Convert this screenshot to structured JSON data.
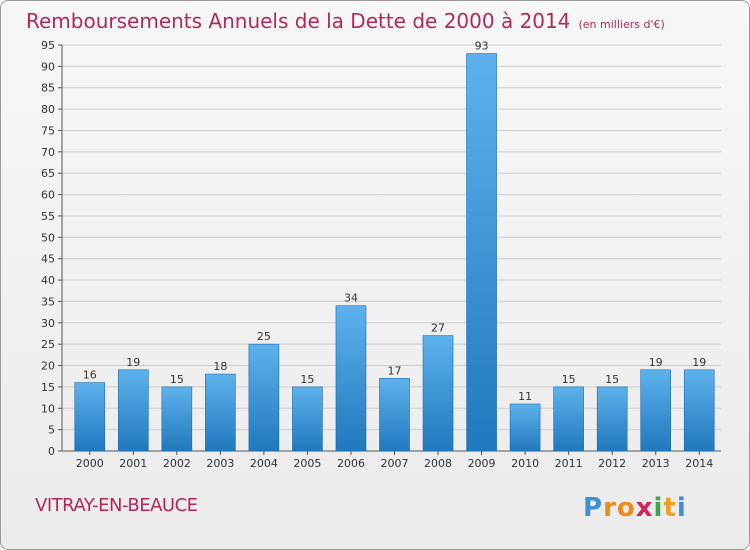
{
  "header": {
    "title": "Remboursements Annuels de la Dette de 2000 à 2014",
    "subtitle": "(en milliers d'€)"
  },
  "footer": {
    "commune": "VITRAY-EN-BEAUCE",
    "logo_text": "Proxiti"
  },
  "colors": {
    "title": "#b0285e",
    "bar_top": "#5eb2ec",
    "bar_bottom": "#2078bd",
    "grid": "#cccccc"
  },
  "chart_data": {
    "type": "bar",
    "title": "Remboursements Annuels de la Dette de 2000 à 2014",
    "categories": [
      "2000",
      "2001",
      "2002",
      "2003",
      "2004",
      "2005",
      "2006",
      "2007",
      "2008",
      "2009",
      "2010",
      "2011",
      "2012",
      "2013",
      "2014"
    ],
    "series": [
      {
        "values": [
          16,
          19,
          15,
          18,
          25,
          15,
          34,
          17,
          27,
          93,
          11,
          15,
          15,
          19,
          19
        ]
      }
    ],
    "ylim": [
      0,
      95
    ],
    "ytick_step": 5,
    "grid": true,
    "data_labels": true
  }
}
